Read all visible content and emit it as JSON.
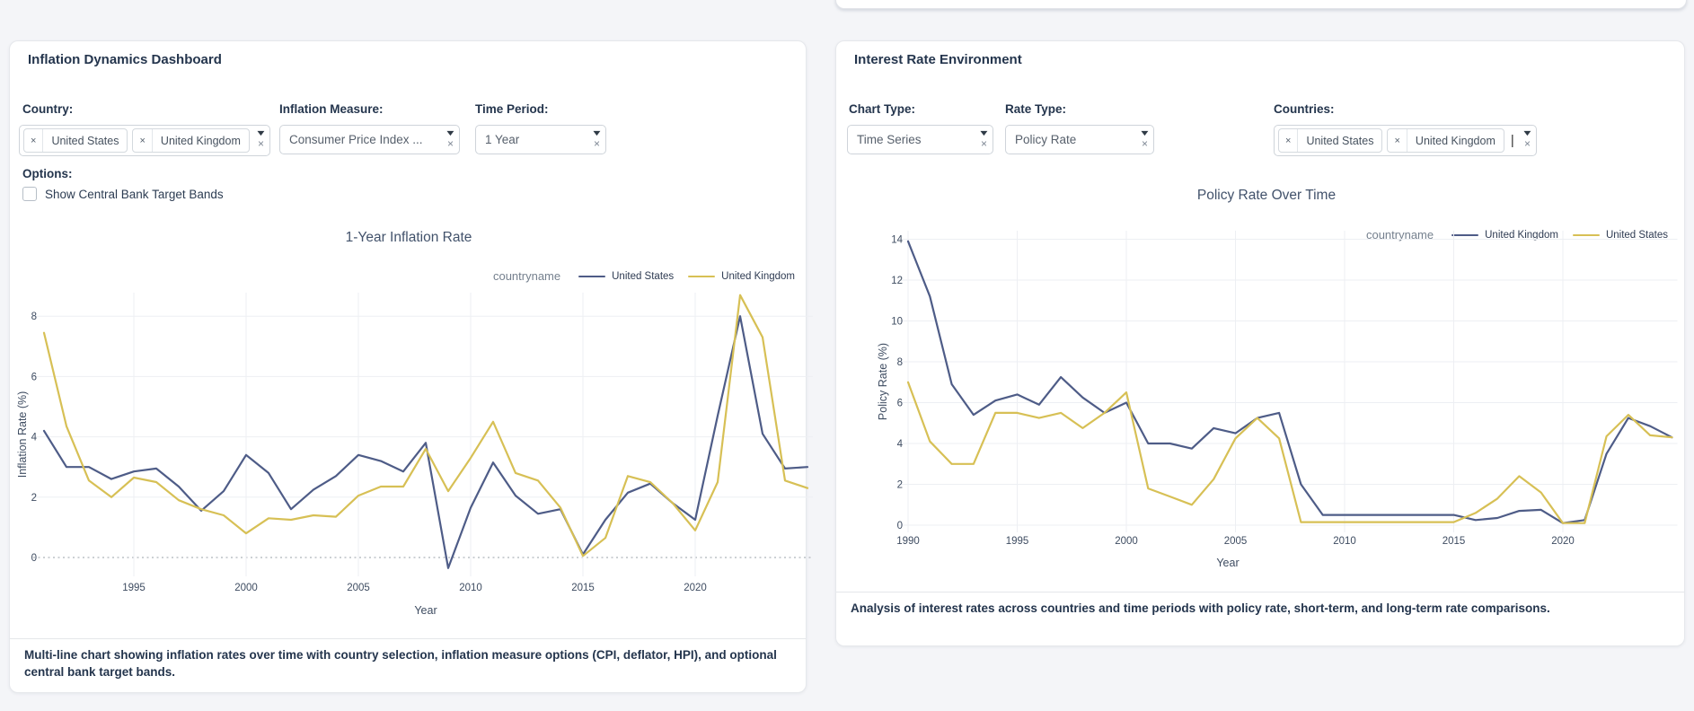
{
  "icons": {
    "caret": "▼",
    "clear": "×",
    "chip_remove": "×",
    "cursor": "|"
  },
  "left_panel": {
    "title": "Inflation Dynamics Dashboard",
    "country_label": "Country:",
    "country_chips": [
      "United States",
      "United Kingdom"
    ],
    "measure_label": "Inflation Measure:",
    "measure_value": "Consumer Price Index ...",
    "period_label": "Time Period:",
    "period_value": "1 Year",
    "options_label": "Options:",
    "checkbox_label": "Show Central Bank Target Bands",
    "checkbox_checked": false,
    "caption": "Multi-line chart showing inflation rates over time with country selection, inflation measure options (CPI, deflator, HPI), and optional central bank target bands."
  },
  "right_panel": {
    "title": "Interest Rate Environment",
    "chart_type_label": "Chart Type:",
    "chart_type_value": "Time Series",
    "rate_type_label": "Rate Type:",
    "rate_type_value": "Policy Rate",
    "countries_label": "Countries:",
    "country_chips": [
      "United States",
      "United Kingdom"
    ],
    "caption": "Analysis of interest rates across countries and time periods with policy rate, short-term, and long-term rate comparisons."
  },
  "chart_data": [
    {
      "type": "line",
      "title": "1-Year Inflation Rate",
      "xlabel": "Year",
      "ylabel": "Inflation Rate (%)",
      "legend_title": "countryname",
      "legend_position": "top-right",
      "grid": true,
      "zero_line_dotted": true,
      "x": [
        1991,
        1992,
        1993,
        1994,
        1995,
        1996,
        1997,
        1998,
        1999,
        2000,
        2001,
        2002,
        2003,
        2004,
        2005,
        2006,
        2007,
        2008,
        2009,
        2010,
        2011,
        2012,
        2013,
        2014,
        2015,
        2016,
        2017,
        2018,
        2019,
        2020,
        2021,
        2022,
        2023,
        2024,
        2025
      ],
      "xticks": [
        1995,
        2000,
        2005,
        2010,
        2015,
        2020
      ],
      "yticks": [
        0,
        2,
        4,
        6,
        8
      ],
      "ylim": [
        -0.9,
        8.9
      ],
      "series": [
        {
          "name": "United States",
          "color": "#4e5c87",
          "values": [
            4.2,
            3.0,
            3.0,
            2.6,
            2.85,
            2.95,
            2.35,
            1.55,
            2.2,
            3.4,
            2.8,
            1.6,
            2.25,
            2.7,
            3.4,
            3.2,
            2.85,
            3.8,
            -0.35,
            1.65,
            3.15,
            2.05,
            1.45,
            1.6,
            0.1,
            1.25,
            2.15,
            2.45,
            1.8,
            1.25,
            4.7,
            8.0,
            4.1,
            2.95,
            3.0
          ]
        },
        {
          "name": "United Kingdom",
          "color": "#d7c055",
          "values": [
            7.45,
            4.35,
            2.55,
            2.0,
            2.65,
            2.5,
            1.9,
            1.6,
            1.4,
            0.8,
            1.3,
            1.25,
            1.4,
            1.35,
            2.05,
            2.35,
            2.35,
            3.6,
            2.2,
            3.3,
            4.5,
            2.8,
            2.55,
            1.65,
            0.05,
            0.65,
            2.7,
            2.5,
            1.8,
            0.9,
            2.5,
            8.7,
            7.3,
            2.55,
            2.3
          ]
        }
      ]
    },
    {
      "type": "line",
      "title": "Policy Rate Over Time",
      "xlabel": "Year",
      "ylabel": "Policy Rate (%)",
      "legend_title": "countryname",
      "legend_position": "top-right",
      "grid": true,
      "zero_line_dotted": false,
      "x": [
        1990,
        1991,
        1992,
        1993,
        1994,
        1995,
        1996,
        1997,
        1998,
        1999,
        2000,
        2001,
        2002,
        2003,
        2004,
        2005,
        2006,
        2007,
        2008,
        2009,
        2010,
        2011,
        2012,
        2013,
        2014,
        2015,
        2016,
        2017,
        2018,
        2019,
        2020,
        2021,
        2022,
        2023,
        2024,
        2025
      ],
      "xticks": [
        1990,
        1995,
        2000,
        2005,
        2010,
        2015,
        2020
      ],
      "yticks": [
        0,
        2,
        4,
        6,
        8,
        10,
        12,
        14
      ],
      "ylim": [
        -0.6,
        14.6
      ],
      "series": [
        {
          "name": "United Kingdom",
          "color": "#4e5c87",
          "values": [
            13.9,
            11.2,
            6.9,
            5.4,
            6.1,
            6.4,
            5.9,
            7.25,
            6.25,
            5.5,
            6.0,
            4.0,
            4.0,
            3.75,
            4.75,
            4.5,
            5.25,
            5.5,
            2.0,
            0.5,
            0.5,
            0.5,
            0.5,
            0.5,
            0.5,
            0.5,
            0.25,
            0.35,
            0.7,
            0.75,
            0.1,
            0.25,
            3.5,
            5.25,
            4.85,
            4.3
          ]
        },
        {
          "name": "United States",
          "color": "#d7c055",
          "values": [
            7.0,
            4.1,
            3.0,
            3.0,
            5.5,
            5.5,
            5.25,
            5.5,
            4.75,
            5.5,
            6.5,
            1.8,
            1.4,
            1.0,
            2.25,
            4.25,
            5.25,
            4.25,
            0.15,
            0.15,
            0.15,
            0.15,
            0.15,
            0.15,
            0.15,
            0.15,
            0.6,
            1.3,
            2.4,
            1.6,
            0.1,
            0.1,
            4.35,
            5.4,
            4.4,
            4.3
          ]
        }
      ]
    }
  ]
}
